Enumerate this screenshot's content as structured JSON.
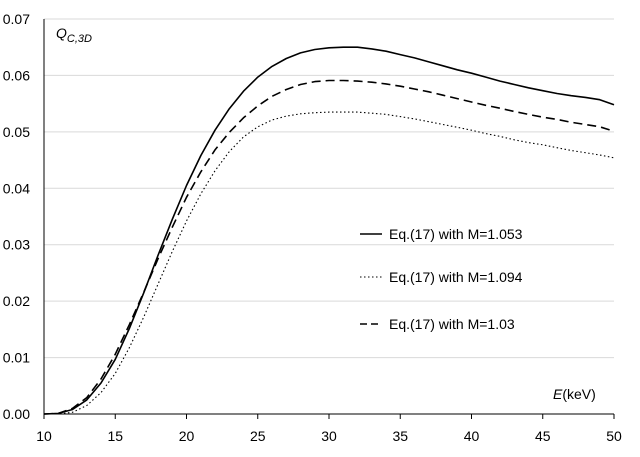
{
  "chart_data": {
    "type": "line",
    "title": "",
    "xlabel": "E(keV)",
    "xlabel_italic": "E",
    "xlabel_rest": "(keV)",
    "ylabel": "Q_C,3D",
    "ylabel_main": "Q",
    "ylabel_sub": "C,3D",
    "xlim": [
      10,
      50
    ],
    "ylim": [
      0,
      0.07
    ],
    "xticks": [
      "10",
      "15",
      "20",
      "25",
      "30",
      "35",
      "40",
      "45",
      "50"
    ],
    "yticks": [
      "0.00",
      "0.01",
      "0.02",
      "0.03",
      "0.04",
      "0.05",
      "0.06",
      "0.07"
    ],
    "grid": "horizontal",
    "legend_position": "right-middle",
    "x": [
      10,
      11,
      12,
      13,
      14,
      15,
      16,
      17,
      18,
      19,
      20,
      21,
      22,
      23,
      24,
      25,
      26,
      27,
      28,
      29,
      30,
      31,
      32,
      33,
      34,
      35,
      36,
      37,
      38,
      39,
      40,
      41,
      42,
      43,
      44,
      45,
      46,
      47,
      48,
      49,
      50
    ],
    "series": [
      {
        "name": "Eq.(17) with M=1.053",
        "style": "solid",
        "values": [
          0.0,
          0.0001,
          0.0008,
          0.0025,
          0.0055,
          0.0097,
          0.0152,
          0.0215,
          0.0281,
          0.0345,
          0.0405,
          0.0458,
          0.0503,
          0.0541,
          0.0572,
          0.0597,
          0.0616,
          0.063,
          0.064,
          0.0646,
          0.0649,
          0.065,
          0.065,
          0.0647,
          0.0643,
          0.0637,
          0.0631,
          0.0624,
          0.0617,
          0.061,
          0.0604,
          0.0597,
          0.059,
          0.0584,
          0.0578,
          0.0573,
          0.0568,
          0.0564,
          0.0561,
          0.0557,
          0.0548
        ]
      },
      {
        "name": "Eq.(17) with M=1.094",
        "style": "dotted",
        "values": [
          0.0,
          0.0,
          0.0003,
          0.0015,
          0.0038,
          0.0072,
          0.0118,
          0.0172,
          0.023,
          0.0288,
          0.0342,
          0.039,
          0.0431,
          0.0465,
          0.0491,
          0.0509,
          0.0521,
          0.0528,
          0.0532,
          0.0534,
          0.0535,
          0.0535,
          0.0535,
          0.0533,
          0.0531,
          0.0527,
          0.0523,
          0.0518,
          0.0513,
          0.0508,
          0.0503,
          0.0497,
          0.0492,
          0.0486,
          0.0481,
          0.0477,
          0.0472,
          0.0467,
          0.0463,
          0.0459,
          0.0454
        ]
      },
      {
        "name": "Eq.(17) with M=1.03",
        "style": "dashed",
        "values": [
          0.0,
          0.0001,
          0.001,
          0.0029,
          0.0062,
          0.0106,
          0.0159,
          0.0216,
          0.0275,
          0.0331,
          0.0384,
          0.0429,
          0.0468,
          0.0499,
          0.0525,
          0.0546,
          0.0563,
          0.0575,
          0.0584,
          0.0589,
          0.0591,
          0.0591,
          0.059,
          0.0588,
          0.0585,
          0.0581,
          0.0576,
          0.0571,
          0.0565,
          0.0559,
          0.0553,
          0.0547,
          0.0542,
          0.0536,
          0.0531,
          0.0526,
          0.0522,
          0.0517,
          0.0513,
          0.0509,
          0.0501
        ]
      }
    ]
  }
}
